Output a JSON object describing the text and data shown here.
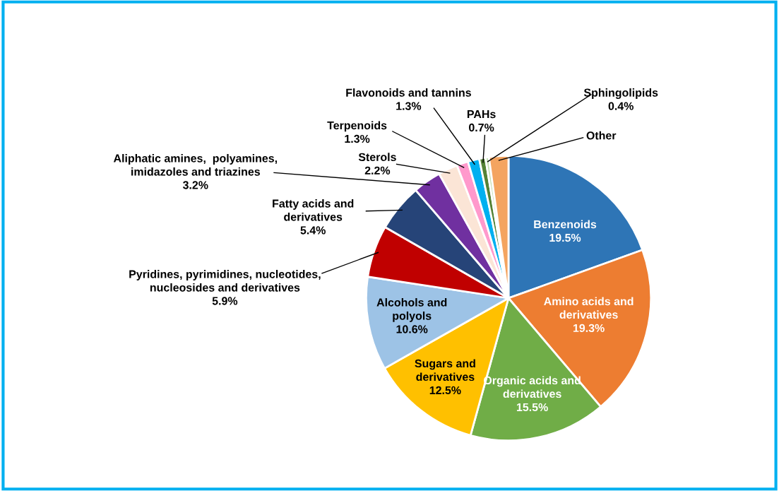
{
  "chart_data": {
    "type": "pie",
    "categories": [
      "Benzenoids",
      "Amino acids and\nderivatives",
      "Organic acids and\nderivatives",
      "Sugars and\nderivatives",
      "Alcohols and\npolyols",
      "Pyridines, pyrimidines, nucleotides,\nnucleosides and derivatives",
      "Fatty acids and\nderivatives",
      "Aliphatic amines,  polyamines,\nimidazoles and triazines",
      "Sterols",
      "Terpenoids",
      "Flavonoids and tannins",
      "PAHs",
      "Sphingolipids",
      "Other"
    ],
    "values": [
      19.5,
      19.3,
      15.5,
      12.5,
      10.6,
      5.9,
      5.4,
      3.2,
      2.2,
      1.3,
      1.3,
      0.7,
      0.4,
      2.2
    ],
    "value_labels": [
      "19.5%",
      "19.3%",
      "15.5%",
      "12.5%",
      "10.6%",
      "5.9%",
      "5.4%",
      "3.2%",
      "2.2%",
      "1.3%",
      "1.3%",
      "0.7%",
      "0.4%",
      null
    ],
    "colors": [
      "#2e75b6",
      "#ed7d31",
      "#70ad47",
      "#ffc000",
      "#9dc3e6",
      "#c00000",
      "#264478",
      "#7030a0",
      "#fbe5d6",
      "#ff99cc",
      "#00b0f0",
      "#548235",
      "#c5e0b4",
      "#f4a460"
    ],
    "legend": false
  }
}
